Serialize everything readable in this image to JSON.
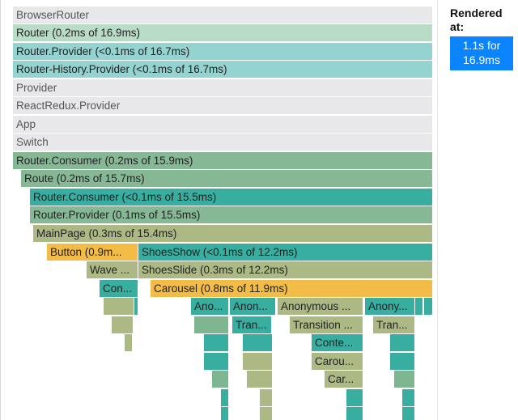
{
  "side": {
    "rendered_at_label": "Rendered at:",
    "commit_time": "1.1s for 16.9ms"
  },
  "colors": {
    "gray": "#e8e8ea",
    "mint": "#b9dcc7",
    "aqua": "#95d3d0",
    "sage": "#86b895",
    "teal": "#37aea0",
    "olive": "#acb985",
    "amber": "#f2bc47",
    "accent": "#0a84ff"
  },
  "flame": {
    "rows": [
      [
        {
          "label": "BrowserRouter",
          "tone": "gray"
        }
      ],
      [
        {
          "label": "Router (0.2ms of 16.9ms)",
          "tone": "mint"
        }
      ],
      [
        {
          "label": "Router.Provider (<0.1ms of 16.7ms)",
          "tone": "aqua"
        }
      ],
      [
        {
          "label": "Router-History.Provider (<0.1ms of 16.7ms)",
          "tone": "aqua"
        }
      ],
      [
        {
          "label": "Provider",
          "tone": "gray"
        }
      ],
      [
        {
          "label": "ReactRedux.Provider",
          "tone": "gray"
        }
      ],
      [
        {
          "label": "App",
          "tone": "gray"
        }
      ],
      [
        {
          "label": "Switch",
          "tone": "gray"
        }
      ],
      [
        {
          "label": "Router.Consumer (0.2ms of 15.9ms)",
          "tone": "sage"
        }
      ],
      [
        {
          "label": "Route (0.2ms of 15.7ms)",
          "tone": "sage"
        }
      ],
      [
        {
          "label": "Router.Consumer (<0.1ms of 15.5ms)",
          "tone": "teal"
        }
      ],
      [
        {
          "label": "Router.Provider (0.1ms of 15.5ms)",
          "tone": "sage"
        }
      ],
      [
        {
          "label": "MainPage (0.3ms of 15.4ms)",
          "tone": "olive"
        }
      ],
      [
        {
          "label": "Button (0.9m...",
          "tone": "amber"
        },
        {
          "label": "ShoesShow (<0.1ms of 12.2ms)",
          "tone": "teal"
        }
      ],
      [
        {
          "label": "Wave ...",
          "tone": "olive"
        },
        {
          "label": "ShoesSlide (0.3ms of 12.2ms)",
          "tone": "olive"
        }
      ],
      [
        {
          "label": "Con...",
          "tone": "teal"
        },
        {
          "label": "Carousel (0.8ms of 11.9ms)",
          "tone": "amber"
        }
      ],
      [
        {
          "label": "Ano...",
          "tone": "teal"
        },
        {
          "label": "Anon...",
          "tone": "teal"
        },
        {
          "label": "Anonymous ...",
          "tone": "olive"
        },
        {
          "label": "Anony...",
          "tone": "teal"
        }
      ],
      [
        {
          "label": "Tran...",
          "tone": "teal"
        },
        {
          "label": "Transition ...",
          "tone": "olive"
        },
        {
          "label": "Tran...",
          "tone": "olive"
        }
      ],
      [
        {
          "label": "Conte...",
          "tone": "teal"
        }
      ],
      [
        {
          "label": "Carou...",
          "tone": "olive"
        }
      ],
      [
        {
          "label": "Car...",
          "tone": "olive"
        }
      ]
    ]
  }
}
